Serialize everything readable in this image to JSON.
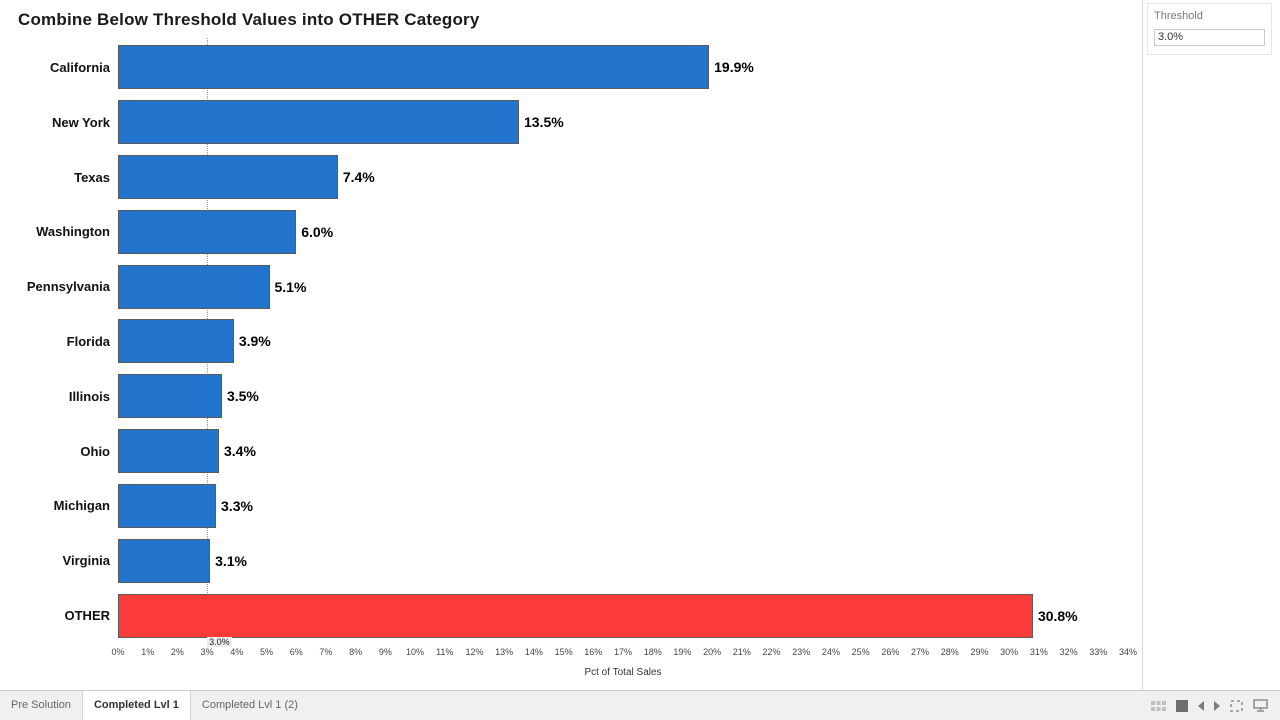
{
  "title": "Combine Below Threshold Values into OTHER Category",
  "parameter": {
    "label": "Threshold",
    "value": "3.0%"
  },
  "chart_data": {
    "type": "bar",
    "orientation": "horizontal",
    "title": "Combine Below Threshold Values into OTHER Category",
    "categories": [
      "California",
      "New York",
      "Texas",
      "Washington",
      "Pennsylvania",
      "Florida",
      "Illinois",
      "Ohio",
      "Michigan",
      "Virginia",
      "OTHER"
    ],
    "values": [
      19.9,
      13.5,
      7.4,
      6.0,
      5.1,
      3.9,
      3.5,
      3.4,
      3.3,
      3.1,
      30.8
    ],
    "value_labels": [
      "19.9%",
      "13.5%",
      "7.4%",
      "6.0%",
      "5.1%",
      "3.9%",
      "3.5%",
      "3.4%",
      "3.3%",
      "3.1%",
      "30.8%"
    ],
    "xlabel": "Pct of Total Sales",
    "xlim": [
      0,
      34
    ],
    "tick_labels": [
      "0%",
      "1%",
      "2%",
      "3%",
      "4%",
      "5%",
      "6%",
      "7%",
      "8%",
      "9%",
      "10%",
      "11%",
      "12%",
      "13%",
      "14%",
      "15%",
      "16%",
      "17%",
      "18%",
      "19%",
      "20%",
      "21%",
      "22%",
      "23%",
      "24%",
      "25%",
      "26%",
      "27%",
      "28%",
      "29%",
      "30%",
      "31%",
      "32%",
      "33%",
      "34%"
    ],
    "reference_line": {
      "value": 3.0,
      "label": "3.0%"
    },
    "legend": "none",
    "grid": "off",
    "colors": {
      "bar": "#2374cc",
      "other_bar": "#fb3a3a",
      "bar_border": "#5a5a5a",
      "reference_line": "#c98079"
    }
  },
  "tabs": [
    {
      "label": "Pre Solution",
      "active": false
    },
    {
      "label": "Completed Lvl 1",
      "active": true
    },
    {
      "label": "Completed Lvl 1 (2)",
      "active": false
    }
  ],
  "statusbar": {
    "icons": [
      "sheet-sorter-icon",
      "filmstrip-icon",
      "previous-sheet-icon",
      "next-sheet-icon",
      "show-filmstrip-icon",
      "presentation-mode-icon"
    ]
  }
}
